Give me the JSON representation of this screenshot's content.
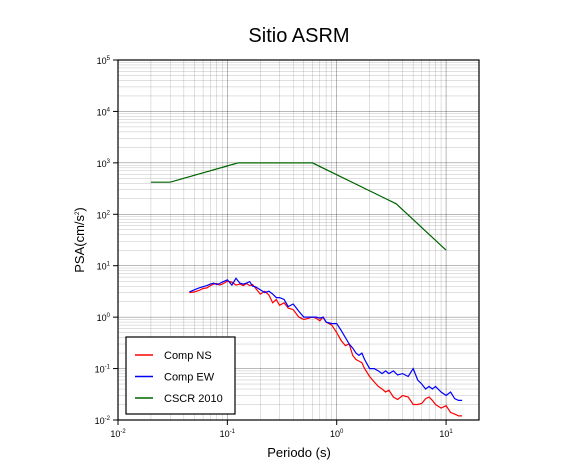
{
  "chart_data": {
    "type": "line",
    "title": "Sitio ASRM",
    "xlabel": "Periodo (s)",
    "ylabel_base": "PSA(cm/s",
    "ylabel_sup": "2",
    "ylabel_end": ")",
    "x_scale": "log",
    "y_scale": "log",
    "xlim": [
      0.01,
      20
    ],
    "ylim": [
      0.01,
      100000
    ],
    "grid": true,
    "legend_position": "bottom-left",
    "x_ticks": [
      {
        "value": 0.01,
        "base": "10",
        "exp": "-2"
      },
      {
        "value": 0.1,
        "base": "10",
        "exp": "-1"
      },
      {
        "value": 1,
        "base": "10",
        "exp": "0"
      },
      {
        "value": 10,
        "base": "10",
        "exp": "1"
      }
    ],
    "y_ticks": [
      {
        "value": 0.01,
        "base": "10",
        "exp": "-2"
      },
      {
        "value": 0.1,
        "base": "10",
        "exp": "-1"
      },
      {
        "value": 1,
        "base": "10",
        "exp": "0"
      },
      {
        "value": 10,
        "base": "10",
        "exp": "1"
      },
      {
        "value": 100,
        "base": "10",
        "exp": "2"
      },
      {
        "value": 1000,
        "base": "10",
        "exp": "3"
      },
      {
        "value": 10000,
        "base": "10",
        "exp": "4"
      },
      {
        "value": 100000,
        "base": "10",
        "exp": "5"
      }
    ],
    "series": [
      {
        "name": "Comp NS",
        "color": "#ff0000",
        "x": [
          0.045,
          0.05,
          0.055,
          0.06,
          0.065,
          0.07,
          0.075,
          0.08,
          0.085,
          0.09,
          0.1,
          0.11,
          0.12,
          0.13,
          0.14,
          0.15,
          0.16,
          0.17,
          0.18,
          0.2,
          0.22,
          0.24,
          0.26,
          0.28,
          0.3,
          0.33,
          0.36,
          0.4,
          0.45,
          0.5,
          0.55,
          0.6,
          0.65,
          0.7,
          0.75,
          0.8,
          0.9,
          1.0,
          1.1,
          1.2,
          1.3,
          1.4,
          1.5,
          1.6,
          1.7,
          1.8,
          2.0,
          2.2,
          2.4,
          2.6,
          2.8,
          3.0,
          3.3,
          3.6,
          4.0,
          4.5,
          5.0,
          5.5,
          6.0,
          6.5,
          7.0,
          7.5,
          8.0,
          9.0,
          10.0,
          11.0,
          12.0,
          13.0,
          14.0
        ],
        "y": [
          3.0,
          3.1,
          3.3,
          3.6,
          3.7,
          4.1,
          4.4,
          4.5,
          4.2,
          4.4,
          5.0,
          4.8,
          4.2,
          4.4,
          4.1,
          4.5,
          4.1,
          4.3,
          3.7,
          2.8,
          3.2,
          2.7,
          1.9,
          2.2,
          1.7,
          1.9,
          1.5,
          1.4,
          1.0,
          0.9,
          0.95,
          1.0,
          0.95,
          0.85,
          1.0,
          0.8,
          0.7,
          0.5,
          0.35,
          0.28,
          0.3,
          0.18,
          0.15,
          0.14,
          0.13,
          0.1,
          0.07,
          0.055,
          0.045,
          0.04,
          0.035,
          0.038,
          0.028,
          0.025,
          0.03,
          0.028,
          0.02,
          0.02,
          0.021,
          0.026,
          0.028,
          0.024,
          0.02,
          0.017,
          0.019,
          0.014,
          0.013,
          0.012,
          0.012
        ]
      },
      {
        "name": "Comp EW",
        "color": "#0000ff",
        "x": [
          0.045,
          0.05,
          0.055,
          0.06,
          0.065,
          0.07,
          0.075,
          0.08,
          0.085,
          0.09,
          0.1,
          0.11,
          0.12,
          0.13,
          0.14,
          0.15,
          0.16,
          0.17,
          0.18,
          0.2,
          0.22,
          0.24,
          0.26,
          0.28,
          0.3,
          0.33,
          0.36,
          0.4,
          0.45,
          0.5,
          0.55,
          0.6,
          0.65,
          0.7,
          0.75,
          0.8,
          0.9,
          1.0,
          1.1,
          1.2,
          1.3,
          1.4,
          1.5,
          1.6,
          1.7,
          1.8,
          2.0,
          2.2,
          2.4,
          2.6,
          2.8,
          3.0,
          3.3,
          3.6,
          4.0,
          4.5,
          5.0,
          5.5,
          6.0,
          6.5,
          7.0,
          7.5,
          8.0,
          9.0,
          10.0,
          11.0,
          12.0,
          13.0,
          14.0
        ],
        "y": [
          3.1,
          3.4,
          3.7,
          3.9,
          4.1,
          4.4,
          4.6,
          4.3,
          4.5,
          4.8,
          5.3,
          4.2,
          5.7,
          4.6,
          4.4,
          4.6,
          4.9,
          4.0,
          3.9,
          3.4,
          3.0,
          3.2,
          2.8,
          2.4,
          2.4,
          2.2,
          1.6,
          1.8,
          1.3,
          1.0,
          1.0,
          1.0,
          1.0,
          0.95,
          1.0,
          0.8,
          0.75,
          0.75,
          0.55,
          0.4,
          0.3,
          0.25,
          0.2,
          0.18,
          0.2,
          0.15,
          0.1,
          0.1,
          0.09,
          0.08,
          0.09,
          0.08,
          0.09,
          0.075,
          0.08,
          0.07,
          0.1,
          0.06,
          0.05,
          0.04,
          0.045,
          0.04,
          0.045,
          0.035,
          0.03,
          0.035,
          0.026,
          0.024,
          0.024
        ]
      },
      {
        "name": "CSCR 2010",
        "color": "#006400",
        "x": [
          0.02,
          0.03,
          0.125,
          0.6,
          3.5,
          10
        ],
        "y": [
          420,
          420,
          1000,
          1000,
          160,
          20
        ]
      }
    ]
  }
}
